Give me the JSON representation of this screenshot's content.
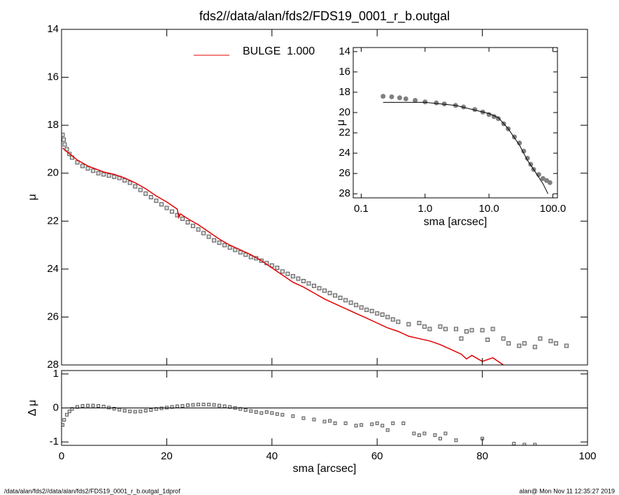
{
  "chart_data": [
    {
      "type": "scatter",
      "title": "fds2//data/alan/fds2/FDS19_0001_r_b.outgal",
      "ylabel": "μ",
      "xlim": [
        0,
        100
      ],
      "ylim": [
        28,
        14
      ],
      "xticks": [
        0,
        20,
        40,
        60,
        80,
        100
      ],
      "yticks": [
        14,
        16,
        18,
        20,
        22,
        24,
        26,
        28
      ],
      "legend": "top",
      "series": [
        {
          "color": "#555555",
          "marker": "square",
          "x": [
            0.2,
            0.4,
            0.6,
            1,
            1.5,
            2,
            3,
            4,
            5,
            6,
            7,
            8,
            9,
            10,
            11,
            12,
            13,
            14,
            15,
            16,
            17,
            18,
            19,
            20,
            21,
            22,
            23,
            24,
            25,
            26,
            27,
            28,
            29,
            30,
            31,
            32,
            33,
            34,
            35,
            36,
            37,
            38,
            39,
            40,
            41,
            42,
            43,
            44,
            45,
            46,
            47,
            48,
            49,
            50,
            51,
            52,
            53,
            54,
            55,
            56,
            57,
            58,
            59,
            60,
            61,
            62,
            63,
            64,
            66,
            68,
            69,
            70,
            72,
            73,
            75,
            76,
            77,
            78,
            80,
            81,
            82,
            84,
            85,
            87,
            88,
            90,
            91,
            93,
            94,
            96
          ],
          "values": [
            18.4,
            18.6,
            18.8,
            19.0,
            19.2,
            19.35,
            19.55,
            19.7,
            19.8,
            19.9,
            20.0,
            20.05,
            20.1,
            20.15,
            20.2,
            20.3,
            20.4,
            20.55,
            20.7,
            20.85,
            21.0,
            21.15,
            21.3,
            21.45,
            21.6,
            21.75,
            21.9,
            22.05,
            22.2,
            22.35,
            22.5,
            22.65,
            22.8,
            22.9,
            23.0,
            23.1,
            23.2,
            23.3,
            23.4,
            23.5,
            23.55,
            23.65,
            23.75,
            23.85,
            23.95,
            24.1,
            24.2,
            24.3,
            24.4,
            24.5,
            24.6,
            24.7,
            24.8,
            24.9,
            25.0,
            25.1,
            25.2,
            25.3,
            25.4,
            25.5,
            25.6,
            25.7,
            25.75,
            25.85,
            25.9,
            26.0,
            26.1,
            26.2,
            26.3,
            26.25,
            26.4,
            26.5,
            26.4,
            26.5,
            26.5,
            26.9,
            26.6,
            26.55,
            26.55,
            26.95,
            26.5,
            26.9,
            27.1,
            27.2,
            27.1,
            27.25,
            26.9,
            27.0,
            27.1,
            27.2
          ]
        },
        {
          "name": "BULGE  1.000",
          "color": "#e00000",
          "style": "line",
          "x": [
            0.2,
            1,
            3,
            5,
            8,
            10,
            12,
            14,
            16,
            18,
            20,
            22,
            22.3,
            22.6,
            24,
            26,
            28,
            30,
            32,
            34,
            36,
            38,
            40,
            42,
            44,
            46,
            48,
            50,
            52,
            54,
            56,
            58,
            60,
            62,
            64,
            66,
            68,
            70,
            72,
            74,
            76,
            77,
            78,
            80,
            82,
            84
          ],
          "values": [
            18.95,
            19.1,
            19.45,
            19.7,
            19.95,
            20.05,
            20.2,
            20.4,
            20.65,
            20.95,
            21.2,
            21.5,
            21.85,
            21.7,
            21.9,
            22.15,
            22.45,
            22.75,
            23.0,
            23.2,
            23.4,
            23.65,
            23.95,
            24.25,
            24.55,
            24.75,
            25.0,
            25.25,
            25.45,
            25.65,
            25.85,
            26.05,
            26.25,
            26.45,
            26.6,
            26.8,
            26.9,
            27.0,
            27.15,
            27.35,
            27.55,
            27.75,
            27.6,
            27.85,
            27.7,
            28.0
          ]
        }
      ]
    },
    {
      "type": "scatter",
      "xlabel": "sma [arcsec]",
      "ylabel": "Δ μ",
      "xlim": [
        0,
        100
      ],
      "ylim": [
        -1.1,
        1.1
      ],
      "xticks": [
        0,
        20,
        40,
        60,
        80,
        100
      ],
      "yticks": [
        -1,
        0,
        1
      ],
      "hline": 0,
      "series": [
        {
          "color": "#555555",
          "marker": "square",
          "x": [
            0.2,
            0.5,
            1,
            1.5,
            2,
            3,
            4,
            5,
            6,
            7,
            8,
            9,
            10,
            11,
            12,
            13,
            14,
            15,
            16,
            17,
            18,
            19,
            20,
            21,
            22,
            23,
            24,
            25,
            26,
            27,
            28,
            29,
            30,
            31,
            32,
            33,
            34,
            35,
            36,
            37,
            38,
            39,
            40,
            41,
            42,
            44,
            46,
            48,
            50,
            51,
            52,
            54,
            56,
            57,
            59,
            60,
            61,
            62,
            63,
            65,
            67,
            68,
            69,
            71,
            72,
            73,
            75,
            80,
            86,
            88,
            90
          ],
          "values": [
            -0.5,
            -0.35,
            -0.2,
            -0.1,
            -0.03,
            0.03,
            0.06,
            0.07,
            0.07,
            0.06,
            0.04,
            0.01,
            -0.02,
            -0.05,
            -0.08,
            -0.1,
            -0.11,
            -0.1,
            -0.08,
            -0.06,
            -0.03,
            -0.01,
            0.01,
            0.03,
            0.05,
            0.06,
            0.08,
            0.09,
            0.1,
            0.1,
            0.1,
            0.09,
            0.07,
            0.05,
            0.03,
            0.0,
            -0.03,
            -0.06,
            -0.09,
            -0.12,
            -0.15,
            -0.12,
            -0.15,
            -0.18,
            -0.2,
            -0.24,
            -0.3,
            -0.34,
            -0.4,
            -0.38,
            -0.45,
            -0.45,
            -0.52,
            -0.5,
            -0.48,
            -0.45,
            -0.52,
            -0.65,
            -0.45,
            -0.45,
            -0.75,
            -0.8,
            -0.75,
            -0.8,
            -0.9,
            -0.75,
            -0.95,
            -0.9,
            -1.05,
            -1.08,
            -1.08
          ]
        }
      ]
    },
    {
      "type": "scatter",
      "xlabel": "sma [arcsec]",
      "ylabel": "μ",
      "xscale": "log",
      "xlim": [
        0.075,
        118
      ],
      "ylim": [
        28.4,
        13.6
      ],
      "xticks": [
        0.1,
        {
          "value": 1,
          "label": "1.0"
        },
        {
          "value": 10,
          "label": "10.0"
        },
        {
          "value": 100,
          "label": "100.0"
        }
      ],
      "yticks": [
        14,
        16,
        18,
        20,
        22,
        24,
        26,
        28
      ],
      "series": [
        {
          "color": "#808080",
          "marker": "dot",
          "x": [
            0.22,
            0.3,
            0.4,
            0.5,
            0.7,
            1,
            1.5,
            2,
            3,
            4,
            6,
            8,
            10,
            12,
            14,
            17,
            20,
            25,
            30,
            35,
            40,
            45,
            50,
            60,
            70,
            80,
            90
          ],
          "values": [
            18.4,
            18.45,
            18.55,
            18.65,
            18.8,
            18.95,
            19.05,
            19.15,
            19.3,
            19.45,
            19.7,
            19.95,
            20.2,
            20.4,
            20.6,
            21.1,
            21.6,
            22.4,
            23.0,
            23.8,
            24.5,
            25.1,
            25.6,
            26.1,
            26.5,
            26.7,
            26.9
          ]
        },
        {
          "color": "#000000",
          "style": "line",
          "x": [
            0.22,
            1,
            3,
            10,
            14,
            20,
            30,
            40,
            50,
            70,
            84
          ],
          "values": [
            19.0,
            19.0,
            19.3,
            20.1,
            20.5,
            21.6,
            23.2,
            24.7,
            25.6,
            27.0,
            28.0
          ]
        }
      ]
    }
  ],
  "footer": {
    "left": "/data/alan/fds2//data/alan/fds2/FDS19_0001_r_b.outgal_1dprof",
    "right": "alan@  Mon Nov 11 12:35:27 2019"
  }
}
